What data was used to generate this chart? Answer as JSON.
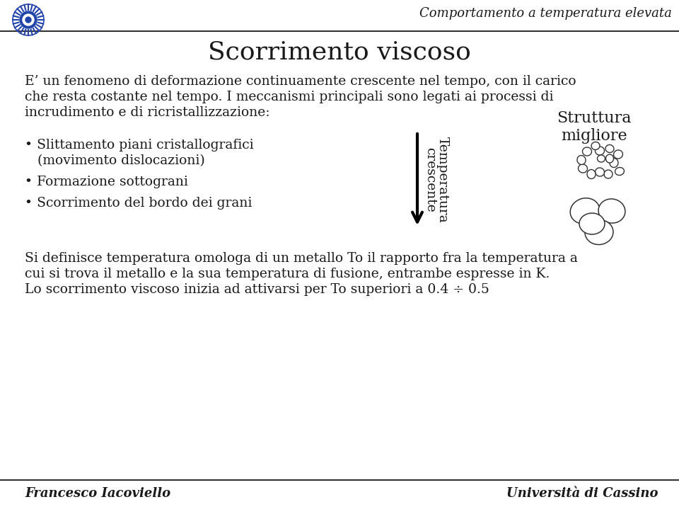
{
  "bg_color": "#ffffff",
  "header_italic_text": "Comportamento a temperatura elevata",
  "title": "Scorrimento viscoso",
  "para1_line1": "E’ un fenomeno di deformazione continuamente crescente nel tempo, con il carico",
  "para1_line2": "che resta costante nel tempo. I meccanismi principali sono legati ai processi di",
  "para1_line3": "incrudimento e di ricristallizzazione:",
  "bullet1a": "• Slittamento piani cristallografici",
  "bullet1b": "   (movimento dislocazioni)",
  "bullet2": "• Formazione sottograni",
  "bullet3": "• Scorrimento del bordo dei grani",
  "struttura_line1": "Struttura",
  "struttura_line2": "migliore",
  "arrow_label_temp": "Temperatura",
  "arrow_label_cresc": "crescente",
  "bottom1": "Si definisce temperatura omologa di un metallo To il rapporto fra la temperatura a",
  "bottom2": "cui si trova il metallo e la sua temperatura di fusione, entrambe espresse in K.",
  "bottom3": "Lo scorrimento viscoso inizia ad attivarsi per To superiori a 0.4 ÷ 0.5",
  "footer_left": "Francesco Iacoviello",
  "footer_right": "Università di Cassino",
  "text_color": "#1a1a1a",
  "header_line_color": "#333333",
  "footer_line_color": "#333333",
  "title_fontsize": 26,
  "body_fontsize": 13.5,
  "struttura_fontsize": 16,
  "header_fontsize": 13,
  "footer_fontsize": 13
}
